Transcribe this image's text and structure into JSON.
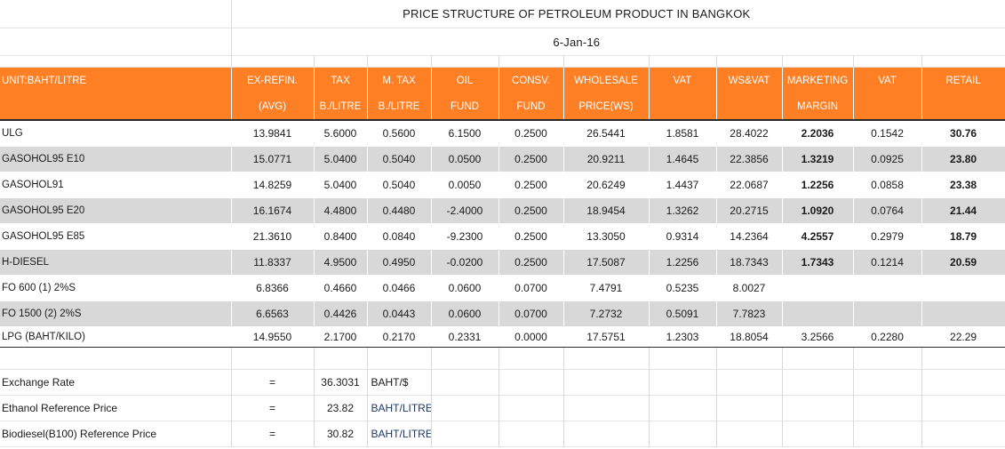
{
  "title": "PRICE STRUCTURE OF PETROLEUM PRODUCT IN BANGKOK",
  "date": "6-Jan-16",
  "header": {
    "unit": "UNIT:BAHT/LITRE",
    "row1": [
      "EX-REFIN.",
      "TAX",
      "M. TAX",
      "OIL",
      "CONSV.",
      "WHOLESALE",
      "VAT",
      "WS&VAT",
      "MARKETING",
      "VAT",
      "RETAIL"
    ],
    "row2": [
      "(AVG)",
      "B./LITRE",
      "B./LITRE",
      "FUND",
      "FUND",
      "PRICE(WS)",
      "",
      "",
      "MARGIN",
      "",
      ""
    ]
  },
  "rows": [
    {
      "name": "ULG",
      "values": [
        "13.9841",
        "5.6000",
        "0.5600",
        "6.1500",
        "0.2500",
        "26.5441",
        "1.8581",
        "28.4022",
        "2.2036",
        "0.1542",
        "30.76"
      ]
    },
    {
      "name": "GASOHOL95 E10",
      "values": [
        "15.0771",
        "5.0400",
        "0.5040",
        "0.0500",
        "0.2500",
        "20.9211",
        "1.4645",
        "22.3856",
        "1.3219",
        "0.0925",
        "23.80"
      ]
    },
    {
      "name": "GASOHOL91",
      "values": [
        "14.8259",
        "5.0400",
        "0.5040",
        "0.0050",
        "0.2500",
        "20.6249",
        "1.4437",
        "22.0687",
        "1.2256",
        "0.0858",
        "23.38"
      ]
    },
    {
      "name": "GASOHOL95 E20",
      "values": [
        "16.1674",
        "4.4800",
        "0.4480",
        "-2.4000",
        "0.2500",
        "18.9454",
        "1.3262",
        "20.2715",
        "1.0920",
        "0.0764",
        "21.44"
      ]
    },
    {
      "name": "GASOHOL95 E85",
      "values": [
        "21.3610",
        "0.8400",
        "0.0840",
        "-9.2300",
        "0.2500",
        "13.3050",
        "0.9314",
        "14.2364",
        "4.2557",
        "0.2979",
        "18.79"
      ]
    },
    {
      "name": "H-DIESEL",
      "values": [
        "11.8337",
        "4.9500",
        "0.4950",
        "-0.0200",
        "0.2500",
        "17.5087",
        "1.2256",
        "18.7343",
        "1.7343",
        "0.1214",
        "20.59"
      ]
    },
    {
      "name": "FO 600 (1) 2%S",
      "values": [
        "6.8366",
        "0.4660",
        "0.0466",
        "0.0600",
        "0.0700",
        "7.4791",
        "0.5235",
        "8.0027",
        "",
        "",
        ""
      ]
    },
    {
      "name": "FO 1500 (2) 2%S",
      "values": [
        "6.6563",
        "0.4426",
        "0.0443",
        "0.0600",
        "0.0700",
        "7.2732",
        "0.5091",
        "7.7823",
        "",
        "",
        ""
      ]
    },
    {
      "name": "LPG (BAHT/KILO)",
      "values": [
        "14.9550",
        "2.1700",
        "0.2170",
        "0.2331",
        "0.0000",
        "17.5751",
        "1.2303",
        "18.8054",
        "3.2566",
        "0.2280",
        "22.29"
      ]
    }
  ],
  "footer": [
    {
      "label": "Exchange Rate",
      "eq": "=",
      "value": "36.3031",
      "unit": "BAHT/$"
    },
    {
      "label": "Ethanol Reference Price",
      "eq": "=",
      "value": "23.82",
      "unit": "BAHT/LITRE"
    },
    {
      "label": "Biodiesel(B100) Reference Price",
      "eq": "=",
      "value": "30.82",
      "unit": "BAHT/LITRE"
    }
  ]
}
